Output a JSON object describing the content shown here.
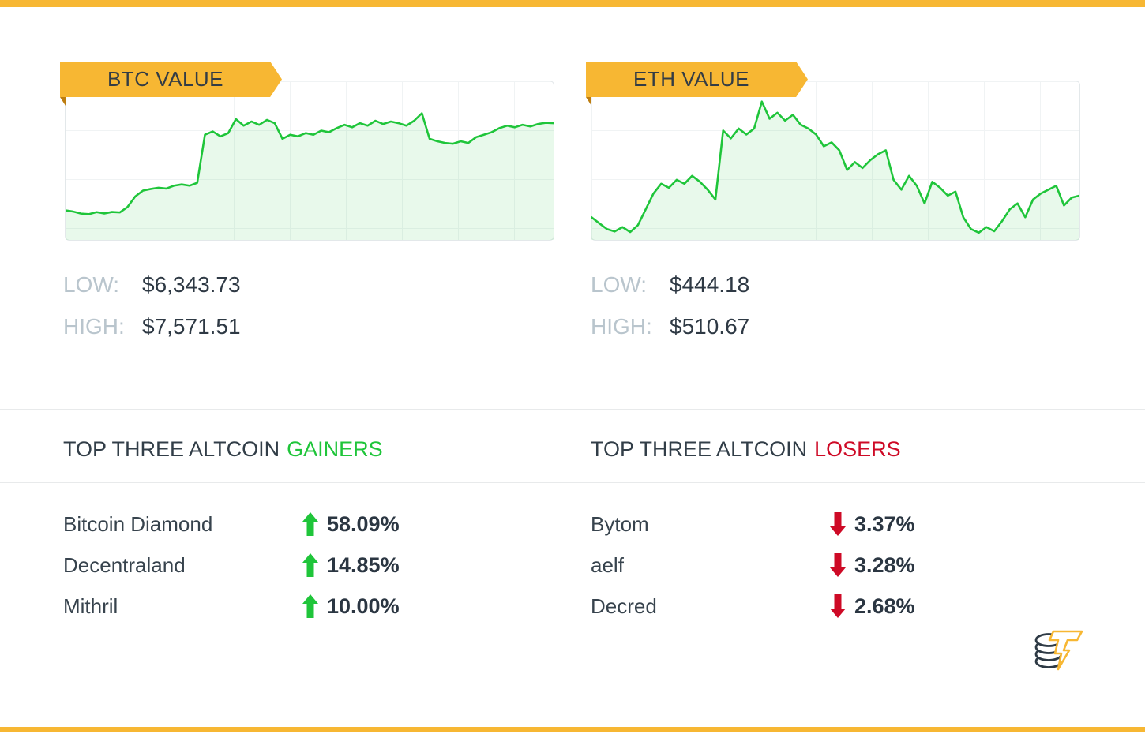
{
  "colors": {
    "accent_yellow": "#F7B733",
    "fold": "#BD7D10",
    "green": "#1FC53A",
    "red": "#CE0A26",
    "dark": "#323E48",
    "muted_label": "#B9C5CD",
    "divider": "#E8EAEB",
    "grid": "#F0F3F4",
    "chart_fill": "rgba(31,197,58,0.10)"
  },
  "charts": [
    {
      "label": "BTC VALUE",
      "low_label": "LOW:",
      "low_value": "$6,343.73",
      "high_label": "HIGH:",
      "high_value": "$7,571.51"
    },
    {
      "label": "ETH VALUE",
      "low_label": "LOW:",
      "low_value": "$444.18",
      "high_label": "HIGH:",
      "high_value": "$510.67"
    }
  ],
  "chart_data": [
    {
      "id": "btc",
      "type": "area",
      "title": "BTC VALUE",
      "unit": "USD",
      "low": 6343.73,
      "high": 7571.51,
      "ylim": [
        6030,
        7960
      ],
      "grid": true,
      "axes_labeled": false,
      "line_color": "#1FC53A",
      "fill_color": "rgba(31,197,58,0.10)",
      "series": [
        {
          "name": "BTC value (USD)",
          "values": [
            6390,
            6375,
            6350,
            6343.73,
            6368,
            6352,
            6370,
            6365,
            6430,
            6560,
            6630,
            6650,
            6665,
            6655,
            6690,
            6705,
            6690,
            6725,
            7310,
            7350,
            7290,
            7330,
            7500,
            7420,
            7470,
            7430,
            7490,
            7450,
            7260,
            7310,
            7290,
            7330,
            7310,
            7360,
            7340,
            7390,
            7430,
            7400,
            7450,
            7420,
            7480,
            7440,
            7470,
            7450,
            7420,
            7480,
            7571.51,
            7260,
            7230,
            7210,
            7200,
            7230,
            7210,
            7280,
            7310,
            7340,
            7390,
            7420,
            7400,
            7430,
            7410,
            7440,
            7455,
            7450
          ]
        }
      ]
    },
    {
      "id": "eth",
      "type": "area",
      "title": "ETH VALUE",
      "unit": "USD",
      "low": 444.18,
      "high": 510.67,
      "ylim": [
        440.5,
        521
      ],
      "grid": true,
      "axes_labeled": false,
      "line_color": "#1FC53A",
      "fill_color": "rgba(31,197,58,0.10)",
      "series": [
        {
          "name": "ETH value (USD)",
          "values": [
            452,
            449,
            446,
            444.8,
            447,
            444.5,
            448,
            456,
            464,
            469,
            467,
            471,
            469,
            473,
            470,
            466,
            461,
            496,
            492,
            497,
            494,
            497,
            510.67,
            502,
            505,
            501,
            504,
            499,
            497,
            494,
            488,
            490,
            486,
            476,
            480,
            477,
            481,
            484,
            486,
            471,
            466,
            473,
            468,
            459,
            470,
            467,
            463,
            465,
            452,
            446,
            444.18,
            447,
            444.9,
            450,
            456,
            459,
            452,
            461,
            464,
            466,
            468,
            458,
            462,
            463
          ]
        }
      ]
    }
  ],
  "gainers": {
    "title_prefix": "TOP THREE ALTCOIN",
    "title_word": "GAINERS",
    "items": [
      {
        "name": "Bitcoin Diamond",
        "change": "58.09%",
        "direction": "up"
      },
      {
        "name": "Decentraland",
        "change": "14.85%",
        "direction": "up"
      },
      {
        "name": "Mithril",
        "change": "10.00%",
        "direction": "up"
      }
    ]
  },
  "losers": {
    "title_prefix": "TOP THREE ALTCOIN",
    "title_word": "LOSERS",
    "items": [
      {
        "name": "Bytom",
        "change": "3.37%",
        "direction": "down"
      },
      {
        "name": "aelf",
        "change": "3.28%",
        "direction": "down"
      },
      {
        "name": "Decred",
        "change": "2.68%",
        "direction": "down"
      }
    ]
  }
}
